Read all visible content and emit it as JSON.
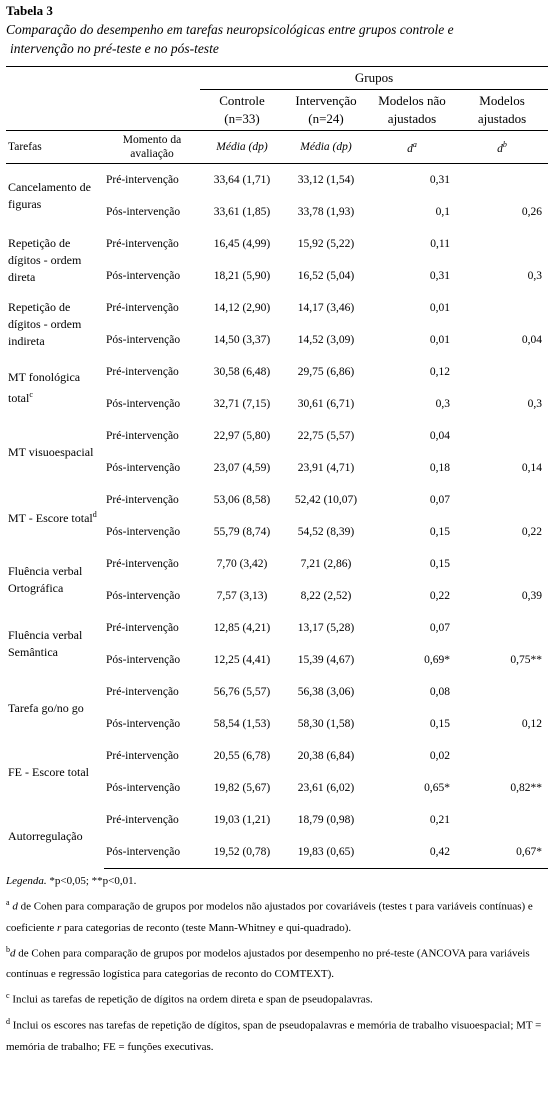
{
  "header": {
    "title": "Tabela 3",
    "subtitle_lines": [
      "Comparação do desempenho em tarefas neuropsicológicas entre grupos controle e",
      "intervenção no pré-teste e no pós-teste"
    ]
  },
  "table": {
    "group_label": "Grupos",
    "columns": {
      "controle": [
        "Controle",
        "(n=33)"
      ],
      "intervencao": [
        "Intervenção",
        "(n=24)"
      ],
      "unadjusted": [
        "Modelos não",
        "ajustados"
      ],
      "adjusted": [
        "Modelos",
        "ajustados"
      ]
    },
    "subheader": {
      "task": "Tarefas",
      "moment": "Momento da avaliação",
      "controle": "Média (dp)",
      "intervencao": "Média (dp)",
      "unadjusted": {
        "text": "d",
        "note": "a"
      },
      "adjusted": {
        "text": "d",
        "note": "b"
      }
    },
    "rows": [
      {
        "task": "Cancelamento de figuras",
        "measures": [
          {
            "moment": "Pré-intervenção",
            "controle": "33,64 (1,71)",
            "intervencao": "33,12 (1,54)",
            "d_unadjusted": "0,31"
          },
          {
            "moment": "Pós-intervenção",
            "controle": "33,61 (1,85)",
            "intervencao": "33,78 (1,93)",
            "d_unadjusted": "0,1",
            "d_adjusted": "0,26"
          }
        ]
      },
      {
        "task": "Repetição de dígitos - ordem direta",
        "measures": [
          {
            "moment": "Pré-intervenção",
            "controle": "16,45 (4,99)",
            "intervencao": "15,92 (5,22)",
            "d_unadjusted": "0,11"
          },
          {
            "moment": "Pós-intervenção",
            "controle": "18,21 (5,90)",
            "intervencao": "16,52 (5,04)",
            "d_unadjusted": "0,31",
            "d_adjusted": "0,3"
          }
        ]
      },
      {
        "task": "Repetição de dígitos - ordem indireta",
        "measures": [
          {
            "moment": "Pré-intervenção",
            "controle": "14,12 (2,90)",
            "intervencao": "14,17 (3,46)",
            "d_unadjusted": "0,01"
          },
          {
            "moment": "Pós-intervenção",
            "controle": "14,50 (3,37)",
            "intervencao": "14,52 (3,09)",
            "d_unadjusted": "0,01",
            "d_adjusted": "0,04"
          }
        ]
      },
      {
        "task": "MT fonológica total",
        "task_note": "c",
        "measures": [
          {
            "moment": "Pré-intervenção",
            "controle": "30,58 (6,48)",
            "intervencao": "29,75 (6,86)",
            "d_unadjusted": "0,12"
          },
          {
            "moment": "Pós-intervenção",
            "controle": "32,71 (7,15)",
            "intervencao": "30,61 (6,71)",
            "d_unadjusted": "0,3",
            "d_adjusted": "0,3"
          }
        ]
      },
      {
        "task": "MT visuoespacial",
        "measures": [
          {
            "moment": "Pré-intervenção",
            "controle": "22,97 (5,80)",
            "intervencao": "22,75 (5,57)",
            "d_unadjusted": "0,04"
          },
          {
            "moment": "Pós-intervenção",
            "controle": "23,07 (4,59)",
            "intervencao": "23,91 (4,71)",
            "d_unadjusted": "0,18",
            "d_adjusted": "0,14"
          }
        ]
      },
      {
        "task": "MT - Escore total",
        "task_note": "d",
        "measures": [
          {
            "moment": "Pré-intervenção",
            "controle": "53,06 (8,58)",
            "intervencao": "52,42 (10,07)",
            "d_unadjusted": "0,07"
          },
          {
            "moment": "Pós-intervenção",
            "controle": "55,79 (8,74)",
            "intervencao": "54,52 (8,39)",
            "d_unadjusted": "0,15",
            "d_adjusted": "0,22"
          }
        ]
      },
      {
        "task": "Fluência verbal Ortográfica",
        "measures": [
          {
            "moment": "Pré-intervenção",
            "controle": "7,70 (3,42)",
            "intervencao": "7,21 (2,86)",
            "d_unadjusted": "0,15"
          },
          {
            "moment": "Pós-intervenção",
            "controle": "7,57 (3,13)",
            "intervencao": "8,22 (2,52)",
            "d_unadjusted": "0,22",
            "d_adjusted": "0,39"
          }
        ]
      },
      {
        "task": "Fluência verbal Semântica",
        "measures": [
          {
            "moment": "Pré-intervenção",
            "controle": "12,85 (4,21)",
            "intervencao": "13,17 (5,28)",
            "d_unadjusted": "0,07"
          },
          {
            "moment": "Pós-intervenção",
            "controle": "12,25 (4,41)",
            "intervencao": "15,39 (4,67)",
            "d_unadjusted": "0,69*",
            "d_adjusted": "0,75**"
          }
        ]
      },
      {
        "task": "Tarefa go/no go",
        "measures": [
          {
            "moment": "Pré-intervenção",
            "controle": "56,76 (5,57)",
            "intervencao": "56,38 (3,06)",
            "d_unadjusted": "0,08"
          },
          {
            "moment": "Pós-intervenção",
            "controle": "58,54 (1,53)",
            "intervencao": "58,30 (1,58)",
            "d_unadjusted": "0,15",
            "d_adjusted": "0,12"
          }
        ]
      },
      {
        "task": "FE - Escore total",
        "measures": [
          {
            "moment": "Pré-intervenção",
            "controle": "20,55 (6,78)",
            "intervencao": "20,38 (6,84)",
            "d_unadjusted": "0,02"
          },
          {
            "moment": "Pós-intervenção",
            "controle": "19,82 (5,67)",
            "intervencao": "23,61 (6,02)",
            "d_unadjusted": "0,65*",
            "d_adjusted": "0,82**"
          }
        ]
      },
      {
        "task": "Autorregulação",
        "measures": [
          {
            "moment": "Pré-intervenção",
            "controle": "19,03 (1,21)",
            "intervencao": "18,79 (0,98)",
            "d_unadjusted": "0,21"
          },
          {
            "moment": "Pós-intervenção",
            "controle": "19,52 (0,78)",
            "intervencao": "19,83 (0,65)",
            "d_unadjusted": "0,42",
            "d_adjusted": "0,67*"
          }
        ]
      }
    ]
  },
  "footnotes": {
    "legend": {
      "label": "Legenda.",
      "text": " *p<0,05; **p<0,01."
    },
    "a": {
      "mark": "a",
      "parts": [
        "d",
        " de Cohen para comparação de grupos por modelos não ajustados por covariáveis (testes t para variáveis contínuas) e coeficiente ",
        "r",
        " para categorias de reconto (teste Mann-Whitney e qui-quadrado)."
      ]
    },
    "b": {
      "mark": "b",
      "parts": [
        "d",
        " de Cohen para comparação de grupos por modelos ajustados por desempenho no pré-teste (ANCOVA para variáveis contínuas e regressão logística para categorias de reconto do COMTEXT)."
      ]
    },
    "c": {
      "mark": "c",
      "text": "Inclui as tarefas de repetição de dígitos na ordem direta e span de pseudopalavras."
    },
    "d": {
      "mark": "d",
      "text": "Inclui os escores nas tarefas de repetição de dígitos, span de pseudopalavras e memória de trabalho visuoespacial; MT = memória de trabalho; FE = funções executivas."
    }
  }
}
